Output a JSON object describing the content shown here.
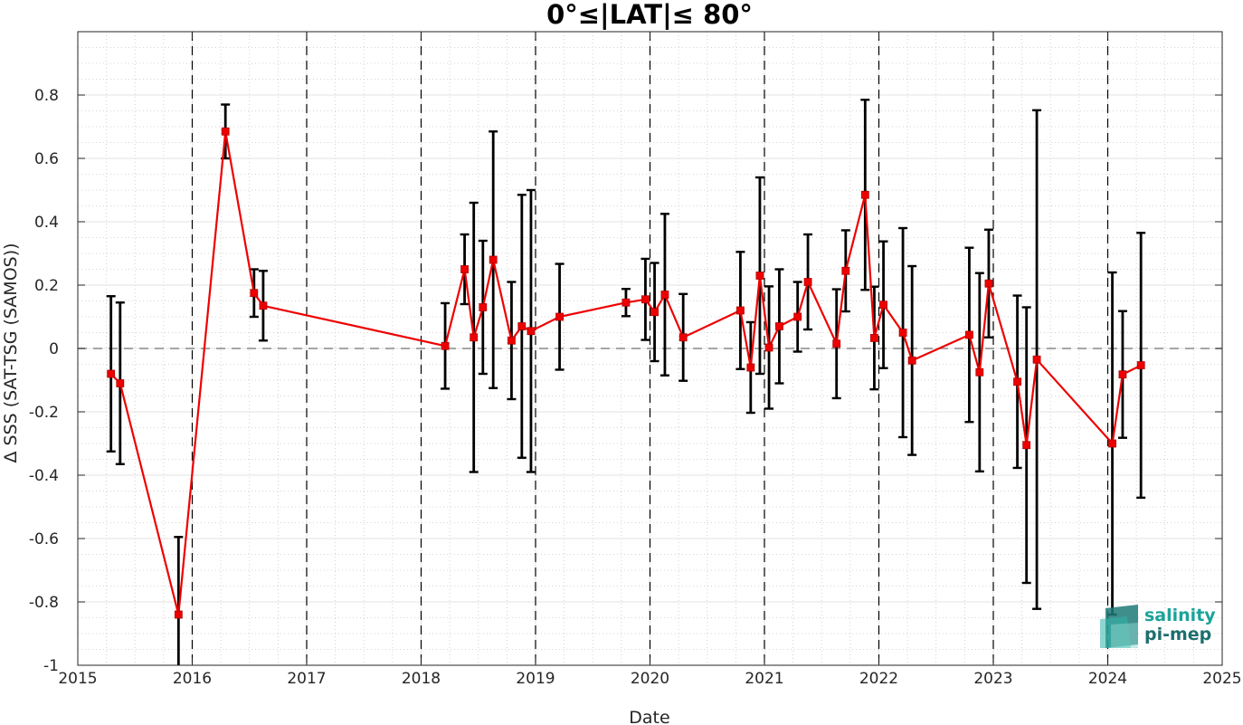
{
  "chart_data": {
    "type": "line",
    "title": "0°≤|LAT|≤ 80°",
    "xlabel": "Date",
    "ylabel": "Δ SSS (SAT-TSG (SAMOS))",
    "xlim": [
      2015,
      2025
    ],
    "ylim": [
      -1,
      1
    ],
    "x_ticks": [
      "2015",
      "2016",
      "2017",
      "2018",
      "2019",
      "2020",
      "2021",
      "2022",
      "2023",
      "2024",
      "2025"
    ],
    "y_ticks": [
      "-1",
      "-0.8",
      "-0.6",
      "-0.4",
      "-0.2",
      "0",
      "0.2",
      "0.4",
      "0.6",
      "0.8"
    ],
    "grid": true,
    "zero_line": true,
    "year_dividers": [
      2016,
      2017,
      2018,
      2019,
      2020,
      2021,
      2022,
      2023,
      2024
    ],
    "series": [
      {
        "color": "#ee0000",
        "errorbar_color": "#000000",
        "points": [
          {
            "x": 2015.29,
            "y": -0.08,
            "err": 0.245
          },
          {
            "x": 2015.37,
            "y": -0.11,
            "err": 0.255
          },
          {
            "x": 2015.88,
            "y": -0.84,
            "err": 0.245
          },
          {
            "x": 2016.29,
            "y": 0.685,
            "err": 0.085
          },
          {
            "x": 2016.54,
            "y": 0.175,
            "err": 0.075
          },
          {
            "x": 2016.62,
            "y": 0.135,
            "err": 0.11
          },
          {
            "x": 2018.21,
            "y": 0.008,
            "err": 0.135
          },
          {
            "x": 2018.38,
            "y": 0.25,
            "err": 0.11
          },
          {
            "x": 2018.46,
            "y": 0.035,
            "err": 0.425
          },
          {
            "x": 2018.54,
            "y": 0.13,
            "err": 0.21
          },
          {
            "x": 2018.63,
            "y": 0.28,
            "err": 0.405
          },
          {
            "x": 2018.79,
            "y": 0.025,
            "err": 0.185
          },
          {
            "x": 2018.88,
            "y": 0.07,
            "err": 0.415
          },
          {
            "x": 2018.96,
            "y": 0.055,
            "err": 0.445
          },
          {
            "x": 2019.21,
            "y": 0.1,
            "err": 0.167
          },
          {
            "x": 2019.79,
            "y": 0.145,
            "err": 0.043
          },
          {
            "x": 2019.96,
            "y": 0.155,
            "err": 0.128
          },
          {
            "x": 2020.04,
            "y": 0.115,
            "err": 0.155
          },
          {
            "x": 2020.13,
            "y": 0.17,
            "err": 0.255
          },
          {
            "x": 2020.29,
            "y": 0.035,
            "err": 0.137
          },
          {
            "x": 2020.79,
            "y": 0.12,
            "err": 0.185
          },
          {
            "x": 2020.88,
            "y": -0.06,
            "err": 0.143
          },
          {
            "x": 2020.96,
            "y": 0.23,
            "err": 0.31
          },
          {
            "x": 2021.04,
            "y": 0.003,
            "err": 0.193
          },
          {
            "x": 2021.13,
            "y": 0.07,
            "err": 0.18
          },
          {
            "x": 2021.29,
            "y": 0.1,
            "err": 0.11
          },
          {
            "x": 2021.38,
            "y": 0.21,
            "err": 0.15
          },
          {
            "x": 2021.63,
            "y": 0.015,
            "err": 0.172
          },
          {
            "x": 2021.71,
            "y": 0.245,
            "err": 0.128
          },
          {
            "x": 2021.88,
            "y": 0.485,
            "err": 0.3
          },
          {
            "x": 2021.96,
            "y": 0.033,
            "err": 0.162
          },
          {
            "x": 2022.04,
            "y": 0.138,
            "err": 0.2
          },
          {
            "x": 2022.21,
            "y": 0.05,
            "err": 0.33
          },
          {
            "x": 2022.29,
            "y": -0.038,
            "err": 0.298
          },
          {
            "x": 2022.79,
            "y": 0.043,
            "err": 0.275
          },
          {
            "x": 2022.88,
            "y": -0.075,
            "err": 0.313
          },
          {
            "x": 2022.96,
            "y": 0.205,
            "err": 0.17
          },
          {
            "x": 2023.21,
            "y": -0.105,
            "err": 0.272
          },
          {
            "x": 2023.29,
            "y": -0.305,
            "err": 0.435
          },
          {
            "x": 2023.38,
            "y": -0.035,
            "err": 0.787
          },
          {
            "x": 2024.04,
            "y": -0.3,
            "err": 0.54
          },
          {
            "x": 2024.13,
            "y": -0.082,
            "err": 0.2
          },
          {
            "x": 2024.29,
            "y": -0.053,
            "err": 0.418
          }
        ]
      }
    ]
  },
  "logo": {
    "line1": "salinity",
    "line2": "pi-mep",
    "color1": "#1aa39a",
    "color2": "#1d6f6e"
  }
}
